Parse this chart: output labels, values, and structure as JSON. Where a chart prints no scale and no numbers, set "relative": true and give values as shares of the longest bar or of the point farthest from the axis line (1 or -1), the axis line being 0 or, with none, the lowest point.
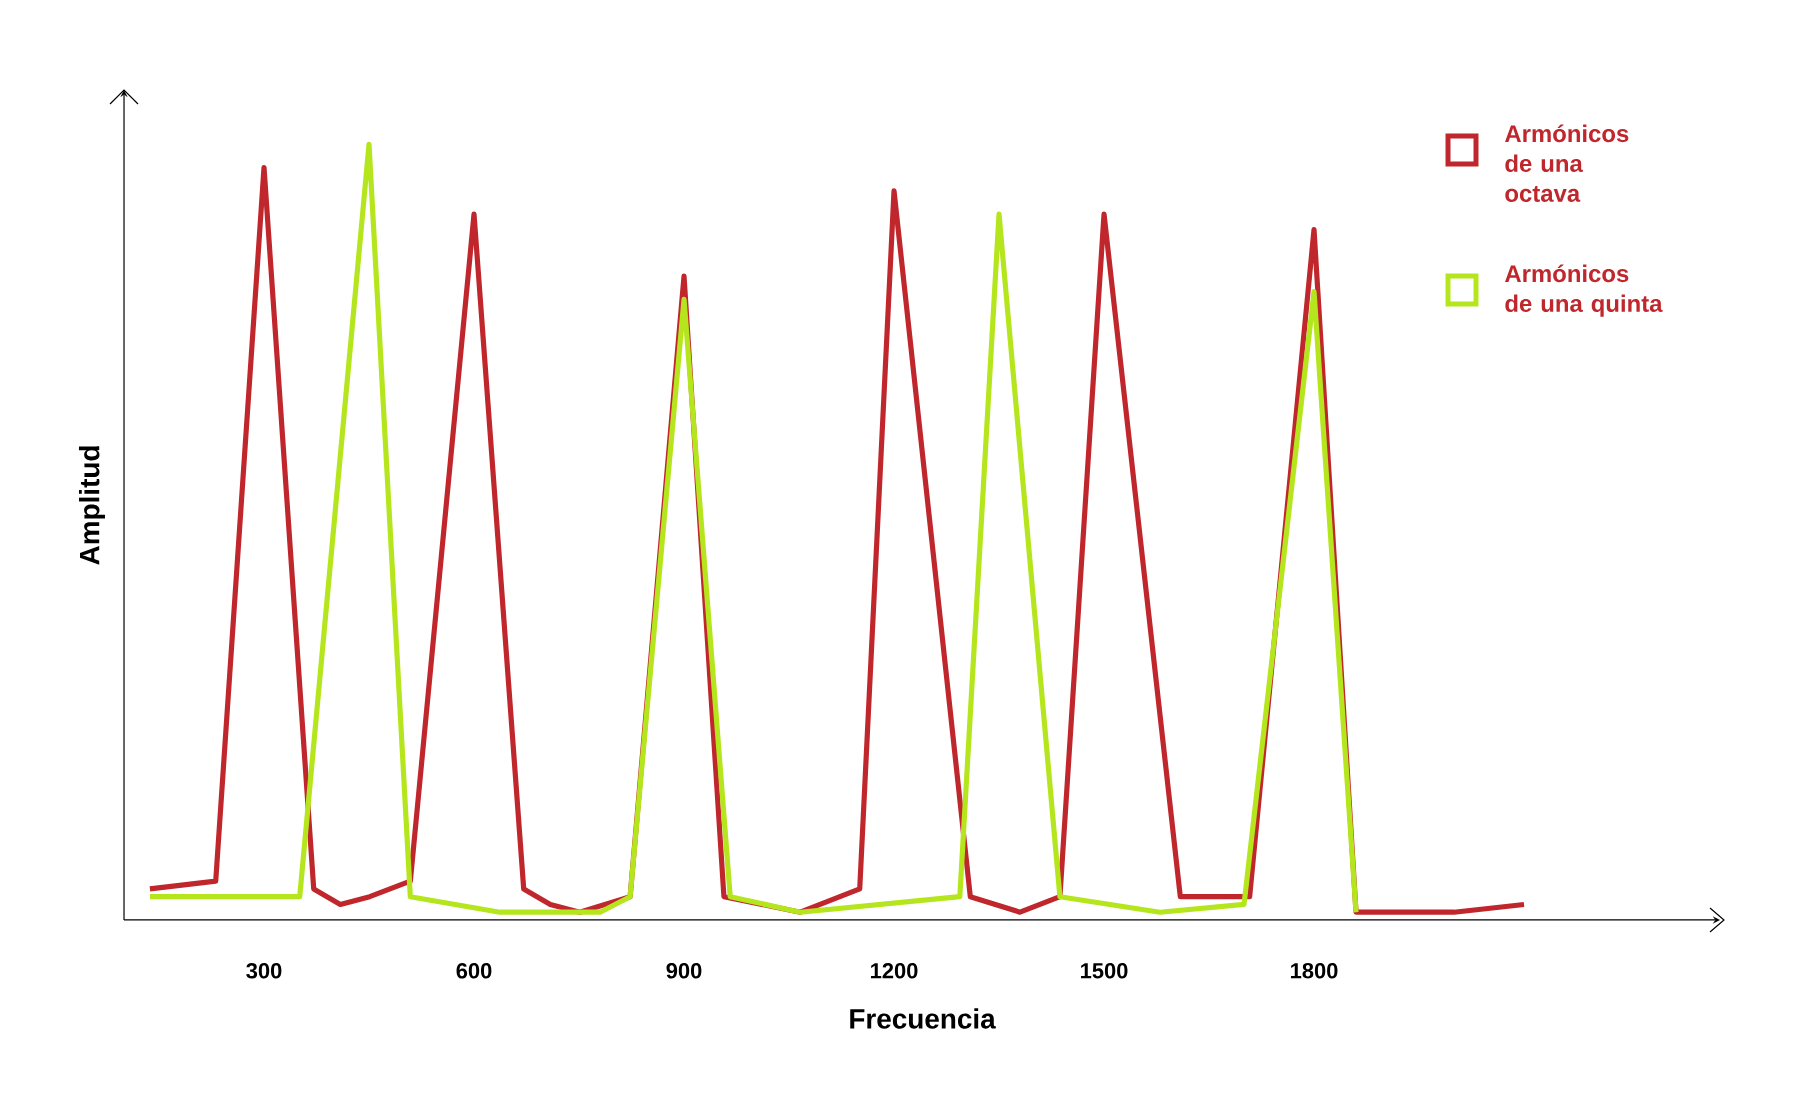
{
  "chart_data": {
    "type": "line",
    "relative": true,
    "xlabel": "Frecuencia",
    "ylabel": "Amplitud",
    "xlim": [
      100,
      2380
    ],
    "xticks": [
      300,
      600,
      900,
      1200,
      1500,
      1800
    ],
    "tick_labels": "x",
    "grid": false,
    "legend": "top right",
    "marker": "none",
    "line_style": "solid",
    "series": [
      {
        "name": "Armónicos de una octava",
        "color": "#c0272d",
        "x": [
          137,
          231,
          300,
          371,
          409,
          451,
          509,
          600,
          671,
          709,
          751,
          823,
          900,
          957,
          1066,
          1151,
          1200,
          1309,
          1380,
          1437,
          1500,
          1609,
          1708,
          1800,
          1860,
          2000,
          2100
        ],
        "values": [
          0.04,
          0.05,
          0.97,
          0.04,
          0.02,
          0.03,
          0.05,
          0.91,
          0.04,
          0.02,
          0.01,
          0.03,
          0.83,
          0.03,
          0.01,
          0.04,
          0.94,
          0.03,
          0.01,
          0.03,
          0.91,
          0.03,
          0.03,
          0.89,
          0.01,
          0.01,
          0.02
        ]
      },
      {
        "name": "Armónicos de una quinta",
        "color": "#b5e61d",
        "x": [
          137,
          351,
          450,
          509,
          637,
          780,
          823,
          900,
          966,
          1066,
          1294,
          1350,
          1437,
          1580,
          1700,
          1800,
          1860
        ],
        "values": [
          0.03,
          0.03,
          1,
          0.03,
          0.01,
          0.01,
          0.03,
          0.8,
          0.03,
          0.01,
          0.03,
          0.91,
          0.03,
          0.01,
          0.02,
          0.81,
          0.01
        ]
      }
    ]
  }
}
